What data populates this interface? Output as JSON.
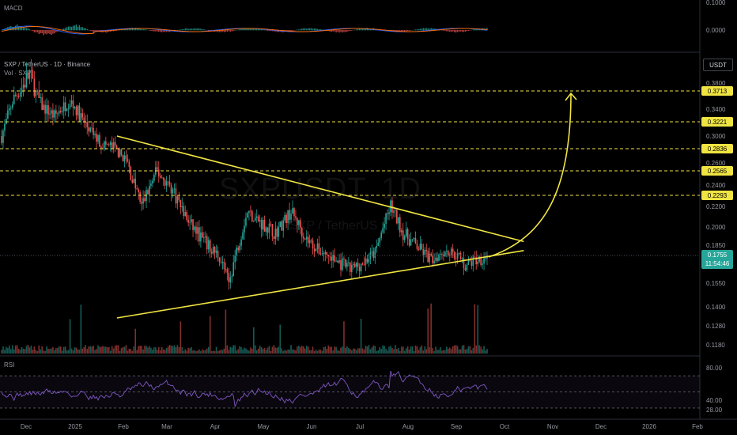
{
  "header": {
    "macd_label": "MACD",
    "title": "SXP / TetherUS · 1D · Binance",
    "volume_label": "Vol · SXP",
    "rsi_label": "RSI",
    "currency": "USDT"
  },
  "watermark": {
    "symbol": "SXPUSDT, 1D",
    "name": "SXP / TetherUS"
  },
  "colors": {
    "up": "#26a69a",
    "down": "#ef5350",
    "pattern": "#f0e442",
    "badge": "#f0e442",
    "price_badge": "#26a69a",
    "rsi": "#7e57c2",
    "macd_line": "#2962ff",
    "signal_line": "#ff6d00"
  },
  "chart_data": {
    "type": "candlestick",
    "x_ticks": [
      "Dec",
      "2025",
      "Feb",
      "Mar",
      "Apr",
      "May",
      "Jun",
      "Jul",
      "Aug",
      "Sep",
      "Oct",
      "Nov",
      "Dec",
      "2026",
      "Feb"
    ],
    "y_ticks": [
      "0.3800",
      "0.3400",
      "0.3000",
      "0.2600",
      "0.2400",
      "0.2200",
      "0.2000",
      "0.1850",
      "0.1550",
      "0.1400",
      "0.1280",
      "0.1180"
    ],
    "macd_ticks": [
      "0.1000",
      "0.0000"
    ],
    "rsi_ticks": [
      "80.00",
      "40.00",
      "28.00"
    ],
    "ylim": [
      0.112,
      0.4
    ],
    "resistance_levels": [
      "0.3713",
      "0.3221",
      "0.2836",
      "0.2565",
      "0.2293"
    ],
    "resistance_values": [
      0.3713,
      0.3221,
      0.2836,
      0.2565,
      0.2293
    ],
    "current_price": "0.1755",
    "current_price_value": 0.1755,
    "countdown": "11:54:46",
    "pattern": "symmetrical triangle",
    "upper_trendline": [
      {
        "date": "2025-01-29",
        "price": 0.3
      },
      {
        "date": "2025-10-14",
        "price": 0.188
      }
    ],
    "lower_trendline": [
      {
        "date": "2025-01-29",
        "price": 0.133
      },
      {
        "date": "2025-10-14",
        "price": 0.18
      }
    ],
    "projection_target": 0.3713
  }
}
